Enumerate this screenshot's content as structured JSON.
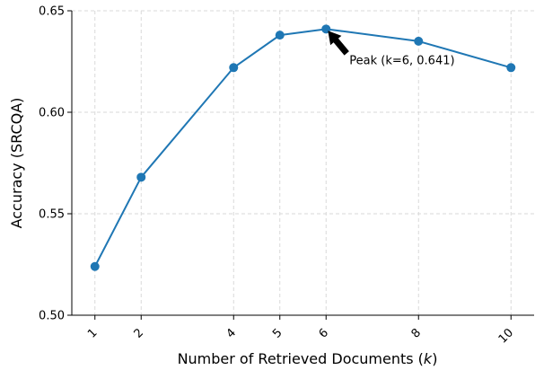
{
  "chart_data": {
    "type": "line",
    "x": [
      1,
      2,
      4,
      5,
      6,
      8,
      10
    ],
    "series": [
      {
        "values": [
          0.524,
          0.568,
          0.622,
          0.638,
          0.641,
          0.635,
          0.622
        ],
        "color": "#1f77b4"
      }
    ],
    "xlabel": "Number of Retrieved Documents (",
    "xlabel_var": "k",
    "xlabel_end": ")",
    "ylabel": "Accuracy (SRCQA)",
    "ylim": [
      0.5,
      0.65
    ],
    "yticks": [
      "0.50",
      "0.55",
      "0.60",
      "0.65"
    ],
    "xticks": [
      "1",
      "2",
      "4",
      "5",
      "6",
      "8",
      "10"
    ],
    "grid": true,
    "annotation": {
      "text": "Peak (k=6, 0.641)",
      "x": 6,
      "y": 0.641
    }
  }
}
